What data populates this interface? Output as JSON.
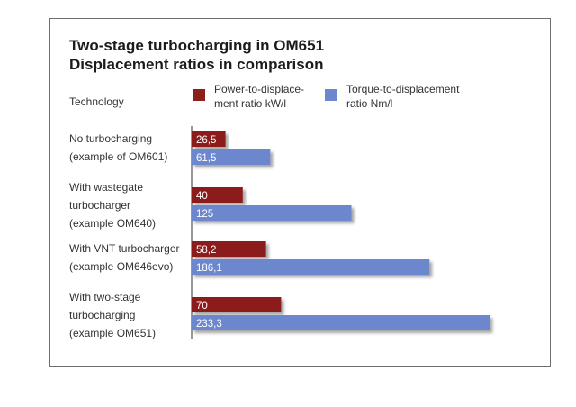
{
  "header": {
    "title_line1": "Two-stage turbocharging in OM651",
    "title_line2": "Displacement ratios in comparison",
    "technology_label": "Technology"
  },
  "legend": {
    "power": {
      "line1": "Power-to-displace-",
      "line2": "ment ratio kW/l",
      "color": "#8c1f1c"
    },
    "torque": {
      "line1": "Torque-to-displacement",
      "line2": "ratio Nm/l",
      "color": "#6d87cf"
    }
  },
  "chart_data": {
    "type": "bar",
    "orientation": "horizontal",
    "categories": [
      [
        "No turbocharging",
        "(example of OM601)"
      ],
      [
        "With wastegate",
        "turbocharger",
        "(example OM640)"
      ],
      [
        "With VNT turbocharger",
        "(example OM646evo)"
      ],
      [
        "With two-stage",
        "turbocharging",
        "(example OM651)"
      ]
    ],
    "series": [
      {
        "name": "Power-to-displacement ratio kW/l",
        "values": [
          26.5,
          40,
          58.2,
          70
        ],
        "labels": [
          "26,5",
          "40",
          "58,2",
          "70"
        ],
        "color": "#8c1f1c"
      },
      {
        "name": "Torque-to-displacement ratio Nm/l",
        "values": [
          61.5,
          125,
          186.1,
          233.3
        ],
        "labels": [
          "61,5",
          "125",
          "186,1",
          "233,3"
        ],
        "color": "#6d87cf"
      }
    ],
    "grid": false,
    "legend_position": "top"
  }
}
